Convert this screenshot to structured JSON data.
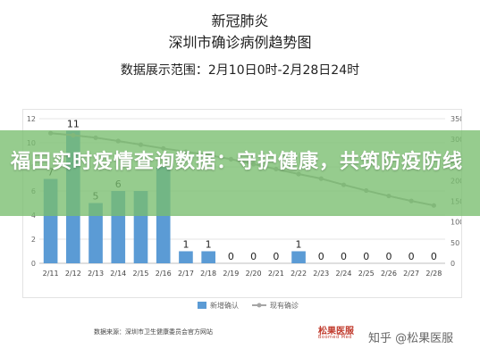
{
  "header": {
    "title_line1": "新冠肺炎",
    "title_line2": "深圳市确诊病例趋势图",
    "range": "数据展示范围：2月10日0时-2月28日24时"
  },
  "banner": {
    "text": "福田实时疫情查询数据：守护健康，共筑防疫防线"
  },
  "footer": {
    "source": "数据来源：深圳市卫生健康委员会官方网站",
    "logo_main": "松果医服",
    "logo_sub": "Boomed Med",
    "watermark": "知乎 @松果医服"
  },
  "colors": {
    "bar": "#5b9bd5",
    "line": "#a5a5a5",
    "banner": "#78be6e"
  },
  "chart_data": {
    "type": "bar",
    "categories": [
      "2/11",
      "2/12",
      "2/13",
      "2/14",
      "2/15",
      "2/16",
      "2/17",
      "2/18",
      "2/19",
      "2/20",
      "2/21",
      "2/22",
      "2/23",
      "2/24",
      "2/25",
      "2/26",
      "2/27",
      "2/28"
    ],
    "series": [
      {
        "name": "新增确认",
        "type": "bar",
        "axis": "left",
        "values": [
          7,
          11,
          5,
          6,
          6,
          8,
          1,
          1,
          0,
          0,
          0,
          1,
          0,
          0,
          0,
          0,
          0,
          0
        ],
        "labels": [
          "7",
          "11",
          "5",
          "6",
          "",
          "",
          "1",
          "1",
          "0",
          "0",
          "0",
          "1",
          "0",
          "0",
          "0",
          "0",
          "0",
          "0"
        ]
      },
      {
        "name": "现有确诊",
        "type": "line",
        "axis": "right",
        "values": [
          315,
          310,
          304,
          296,
          287,
          278,
          270,
          262,
          252,
          240,
          228,
          216,
          205,
          190,
          176,
          163,
          151,
          140
        ]
      }
    ],
    "left_axis": {
      "min": 0,
      "max": 12,
      "ticks": [
        0,
        2,
        4,
        6,
        8,
        10,
        12
      ]
    },
    "right_axis": {
      "min": 0,
      "max": 350,
      "ticks": [
        0,
        50,
        100,
        150,
        200,
        250,
        300,
        350
      ]
    },
    "legend_position": "bottom"
  }
}
